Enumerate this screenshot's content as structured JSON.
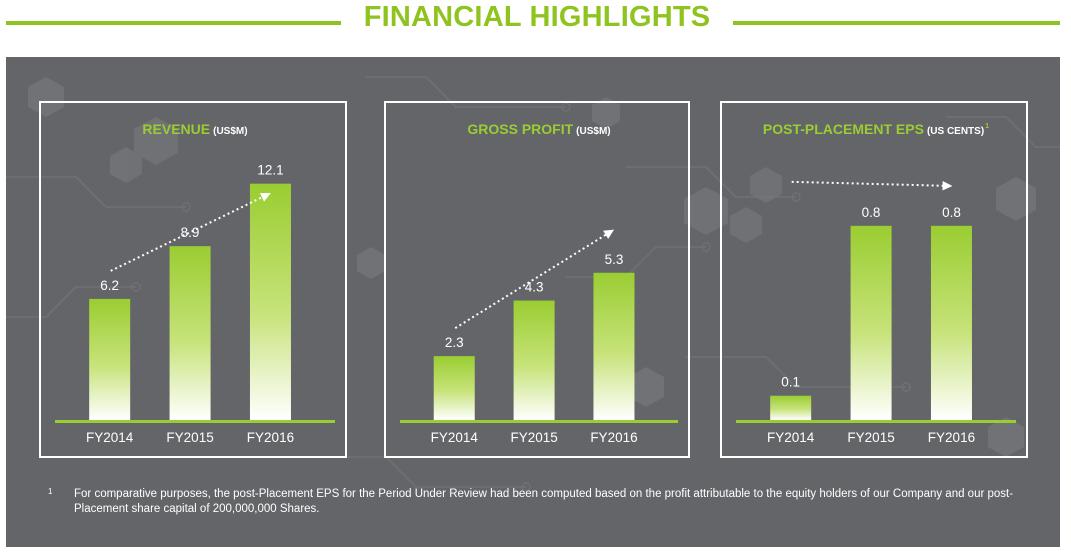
{
  "page": {
    "title": "FINANCIAL HIGHLIGHTS",
    "accent_color": "#8fc31f",
    "panel_color": "#646569"
  },
  "footnote": {
    "marker": "1",
    "text": "For comparative purposes, the post-Placement EPS for the Period Under Review had been computed based on the profit attributable to the equity holders of our Company and our post-Placement share capital of 200,000,000 Shares."
  },
  "chart_data": [
    {
      "type": "bar",
      "title": "REVENUE",
      "unit": "(US$M)",
      "title_superscript": "",
      "categories": [
        "FY2014",
        "FY2015",
        "FY2016"
      ],
      "values": [
        6.2,
        8.9,
        12.1
      ],
      "value_labels": [
        "6.2",
        "8.9",
        "12.1"
      ],
      "ylim": [
        0,
        12.8
      ],
      "trend_arrow": true,
      "bar_color_top": "#9acd32",
      "bar_color_bottom": "#ffffff"
    },
    {
      "type": "bar",
      "title": "GROSS PROFIT",
      "unit": "(US$M)",
      "title_superscript": "",
      "categories": [
        "FY2014",
        "FY2015",
        "FY2016"
      ],
      "values": [
        2.3,
        4.3,
        5.3
      ],
      "value_labels": [
        "2.3",
        "4.3",
        "5.3"
      ],
      "ylim": [
        0,
        9.0
      ],
      "trend_arrow": true,
      "bar_color_top": "#9acd32",
      "bar_color_bottom": "#ffffff"
    },
    {
      "type": "bar",
      "title": "POST-PLACEMENT EPS",
      "unit": "(US CENTS)",
      "title_superscript": "1",
      "categories": [
        "FY2014",
        "FY2015",
        "FY2016"
      ],
      "values": [
        0.1,
        0.8,
        0.8
      ],
      "value_labels": [
        "0.1",
        "0.8",
        "0.8"
      ],
      "ylim": [
        0,
        1.03
      ],
      "trend_arrow": true,
      "bar_color_top": "#9acd32",
      "bar_color_bottom": "#ffffff"
    }
  ]
}
